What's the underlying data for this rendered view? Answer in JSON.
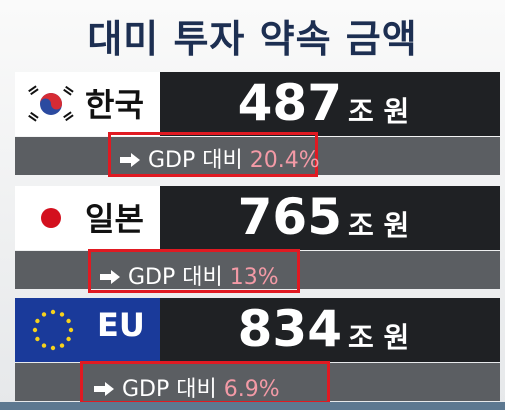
{
  "title": "대미 투자 약속 금액",
  "rows": [
    {
      "country": "한국",
      "amount": 487,
      "unit": "조 원",
      "ratio_label": "GDP 대비",
      "ratio": "20.4%"
    },
    {
      "country": "일본",
      "amount": 765,
      "unit": "조 원",
      "ratio_label": "GDP 대비",
      "ratio": "13%"
    },
    {
      "country": "EU",
      "amount": 834,
      "unit": "조 원",
      "ratio_label": "GDP 대비",
      "ratio": "6.9%"
    }
  ]
}
